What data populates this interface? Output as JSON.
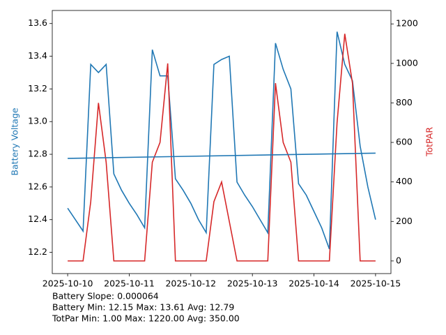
{
  "chart_data": {
    "type": "line",
    "x": [
      0,
      0.125,
      0.25,
      0.375,
      0.5,
      0.625,
      0.75,
      0.875,
      1,
      1.125,
      1.25,
      1.375,
      1.5,
      1.625,
      1.75,
      1.875,
      2,
      2.125,
      2.25,
      2.375,
      2.5,
      2.625,
      2.75,
      2.875,
      3,
      3.125,
      3.25,
      3.375,
      3.5,
      3.625,
      3.75,
      3.875,
      4,
      4.125,
      4.25,
      4.375,
      4.5,
      4.625,
      4.75,
      4.875,
      5
    ],
    "xlim": [
      -0.25,
      5.25
    ],
    "xticks": [
      {
        "value": 0,
        "label": "2025-10-10"
      },
      {
        "value": 1,
        "label": "2025-10-11"
      },
      {
        "value": 2,
        "label": "2025-10-12"
      },
      {
        "value": 3,
        "label": "2025-10-13"
      },
      {
        "value": 4,
        "label": "2025-10-14"
      },
      {
        "value": 5,
        "label": "2025-10-15"
      }
    ],
    "ylabel": "Battery Voltage",
    "y2label": "TotPAR",
    "ylim": [
      12.07,
      13.68
    ],
    "yticks": [
      {
        "value": 12.2,
        "label": "12.2"
      },
      {
        "value": 12.4,
        "label": "12.4"
      },
      {
        "value": 12.6,
        "label": "12.6"
      },
      {
        "value": 12.8,
        "label": "12.8"
      },
      {
        "value": 13.0,
        "label": "13.0"
      },
      {
        "value": 13.2,
        "label": "13.2"
      },
      {
        "value": 13.4,
        "label": "13.4"
      },
      {
        "value": 13.6,
        "label": "13.6"
      }
    ],
    "y2lim": [
      -64,
      1268
    ],
    "y2ticks": [
      0,
      200,
      400,
      600,
      800,
      1000,
      1200
    ],
    "ylabel_color": "#1f77b4",
    "y2label_color": "#d62728",
    "series": [
      {
        "name": "Battery Voltage",
        "color": "#1f77b4",
        "values": [
          12.47,
          12.4,
          12.33,
          13.35,
          13.3,
          13.35,
          12.68,
          12.58,
          12.5,
          12.43,
          12.35,
          13.44,
          13.28,
          13.28,
          12.65,
          12.58,
          12.5,
          12.4,
          12.32,
          13.35,
          13.38,
          13.4,
          12.63,
          12.55,
          12.48,
          12.4,
          12.32,
          13.48,
          13.32,
          13.2,
          12.62,
          12.55,
          12.45,
          12.35,
          12.22,
          13.55,
          13.35,
          13.25,
          12.85,
          12.6,
          12.4
        ]
      },
      {
        "name": "TotPAR",
        "color": "#d62728",
        "axis": "y2",
        "values": [
          0,
          0,
          0,
          300,
          800,
          500,
          0,
          0,
          0,
          0,
          0,
          500,
          600,
          1000,
          0,
          0,
          0,
          0,
          0,
          300,
          400,
          200,
          0,
          0,
          0,
          0,
          0,
          900,
          600,
          500,
          0,
          0,
          0,
          0,
          0,
          700,
          1150,
          900,
          0,
          0,
          0
        ]
      },
      {
        "color": "#1f77b4",
        "x": [
          0,
          5
        ],
        "values": [
          12.775,
          12.807
        ]
      }
    ],
    "annotations": [
      "Battery Slope: 0.000064",
      "Battery Min: 12.15 Max: 13.61 Avg: 12.79",
      "TotPar Min: 1.00 Max: 1220.00 Avg: 350.00"
    ]
  }
}
